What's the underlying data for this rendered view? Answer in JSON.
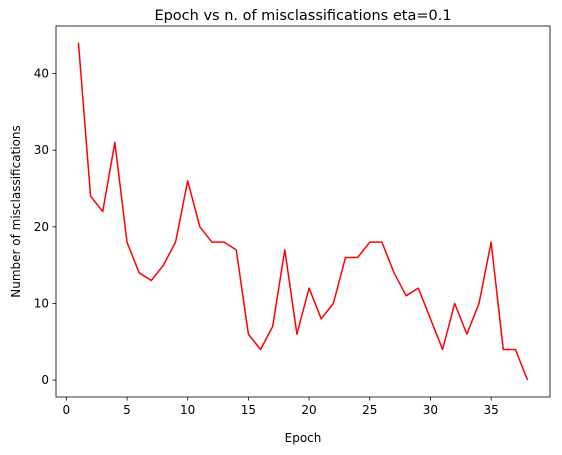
{
  "chart_data": {
    "type": "line",
    "title": "Epoch vs n. of misclassifications eta=0.1",
    "xlabel": "Epoch",
    "ylabel": "Number of misclassifications",
    "xlim": [
      -0.85,
      39.85
    ],
    "ylim": [
      -2.2,
      46.2
    ],
    "xticks": [
      0,
      5,
      10,
      15,
      20,
      25,
      30,
      35
    ],
    "yticks": [
      0,
      10,
      20,
      30,
      40
    ],
    "grid": false,
    "series": [
      {
        "color": "#ff0000",
        "x": [
          1,
          2,
          3,
          4,
          5,
          6,
          7,
          8,
          9,
          10,
          11,
          12,
          13,
          14,
          15,
          16,
          17,
          18,
          19,
          20,
          21,
          22,
          23,
          24,
          25,
          26,
          27,
          28,
          29,
          30,
          31,
          32,
          33,
          34,
          35,
          36,
          37,
          38
        ],
        "y": [
          44,
          24,
          22,
          31,
          18,
          14,
          13,
          15,
          18,
          26,
          20,
          18,
          18,
          17,
          6,
          4,
          7,
          17,
          6,
          12,
          8,
          10,
          16,
          16,
          18,
          18,
          14,
          11,
          12,
          8,
          4,
          10,
          6,
          10,
          18,
          4,
          4,
          0
        ]
      }
    ]
  }
}
